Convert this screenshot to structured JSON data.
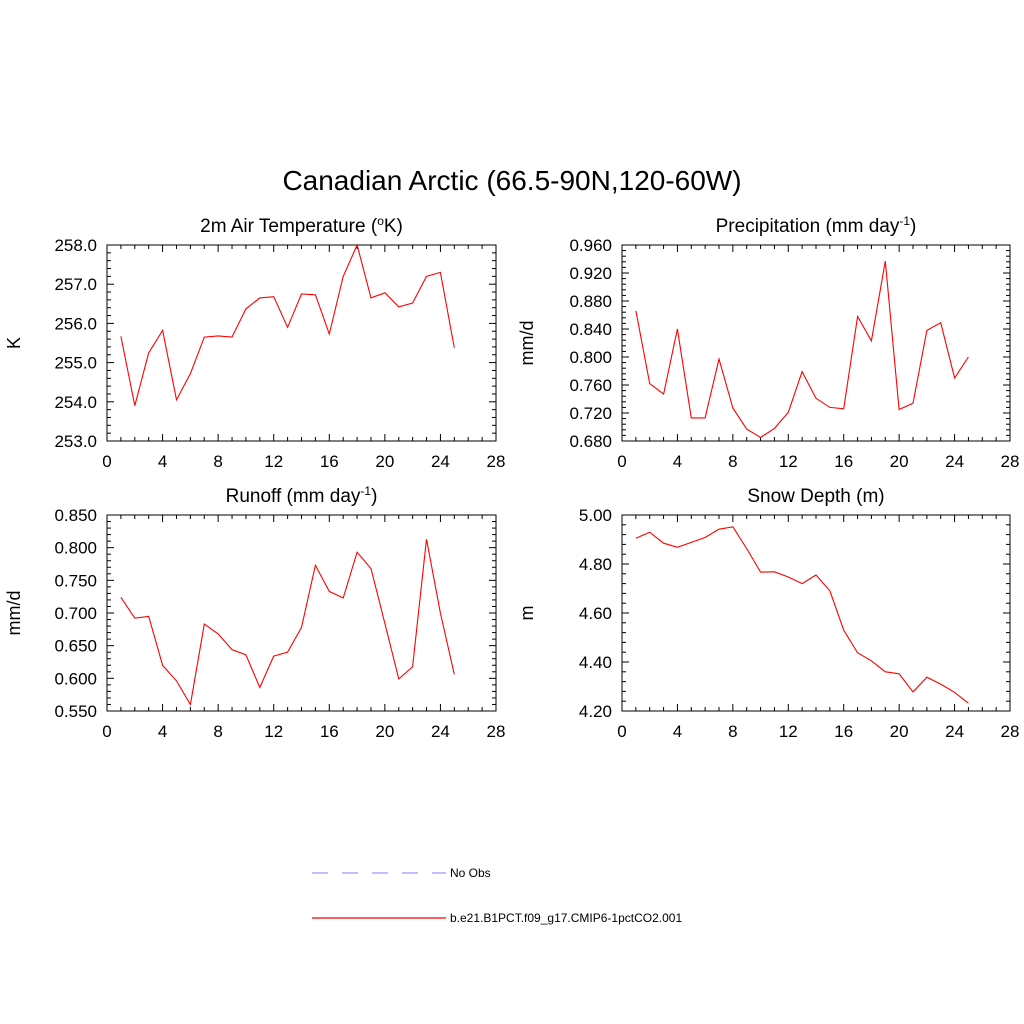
{
  "title": "Canadian Arctic (66.5-90N,120-60W)",
  "colors": {
    "model": "#ff0000",
    "obs": "#9999ff"
  },
  "legend": [
    {
      "label": "No Obs",
      "style": "dashed",
      "color": "#9999ff"
    },
    {
      "label": "b.e21.B1PCT.f09_g17.CMIP6-1pctCO2.001",
      "style": "solid",
      "color": "#ff0000"
    }
  ],
  "chart_data": [
    {
      "type": "line",
      "title": "2m Air Temperature (",
      "title_sup": "o",
      "title_after": "K)",
      "ylabel": "K",
      "xlim": [
        0,
        28
      ],
      "ylim": [
        253.0,
        258.0
      ],
      "xticks": [
        "0",
        "4",
        "8",
        "12",
        "16",
        "20",
        "24",
        "28"
      ],
      "yticks": [
        "253.0",
        "254.0",
        "255.0",
        "256.0",
        "257.0",
        "258.0"
      ],
      "x": [
        1,
        2,
        3,
        4,
        5,
        6,
        7,
        8,
        9,
        10,
        11,
        12,
        13,
        14,
        15,
        16,
        17,
        18,
        19,
        20,
        21,
        22,
        23,
        24,
        25
      ],
      "series": [
        {
          "values": [
            255.67,
            253.9,
            255.25,
            255.82,
            254.05,
            254.72,
            255.65,
            255.68,
            255.65,
            256.37,
            256.65,
            256.68,
            255.9,
            256.75,
            256.73,
            255.73,
            257.2,
            258.0,
            256.65,
            256.78,
            256.42,
            256.52,
            257.2,
            257.3,
            255.38
          ]
        }
      ]
    },
    {
      "type": "line",
      "title": "Precipitation (mm day",
      "title_sup": "-1",
      "title_after": ")",
      "ylabel": "mm/d",
      "xlim": [
        0,
        28
      ],
      "ylim": [
        0.68,
        0.96
      ],
      "xticks": [
        "0",
        "4",
        "8",
        "12",
        "16",
        "20",
        "24",
        "28"
      ],
      "yticks": [
        "0.680",
        "0.720",
        "0.760",
        "0.800",
        "0.840",
        "0.880",
        "0.920",
        "0.960"
      ],
      "x": [
        1,
        2,
        3,
        4,
        5,
        6,
        7,
        8,
        9,
        10,
        11,
        12,
        13,
        14,
        15,
        16,
        17,
        18,
        19,
        20,
        21,
        22,
        23,
        24,
        25
      ],
      "series": [
        {
          "values": [
            0.866,
            0.762,
            0.747,
            0.84,
            0.713,
            0.713,
            0.797,
            0.727,
            0.697,
            0.685,
            0.698,
            0.721,
            0.779,
            0.741,
            0.728,
            0.726,
            0.858,
            0.823,
            0.937,
            0.725,
            0.734,
            0.838,
            0.849,
            0.77,
            0.8
          ]
        }
      ]
    },
    {
      "type": "line",
      "title": "Runoff (mm day",
      "title_sup": "-1",
      "title_after": ")",
      "ylabel": "mm/d",
      "xlim": [
        0,
        28
      ],
      "ylim": [
        0.55,
        0.85
      ],
      "xticks": [
        "0",
        "4",
        "8",
        "12",
        "16",
        "20",
        "24",
        "28"
      ],
      "yticks": [
        "0.550",
        "0.600",
        "0.650",
        "0.700",
        "0.750",
        "0.800",
        "0.850"
      ],
      "x": [
        1,
        2,
        3,
        4,
        5,
        6,
        7,
        8,
        9,
        10,
        11,
        12,
        13,
        14,
        15,
        16,
        17,
        18,
        19,
        20,
        21,
        22,
        23,
        24,
        25
      ],
      "series": [
        {
          "values": [
            0.724,
            0.692,
            0.695,
            0.62,
            0.596,
            0.56,
            0.683,
            0.668,
            0.644,
            0.636,
            0.586,
            0.634,
            0.64,
            0.678,
            0.773,
            0.733,
            0.723,
            0.793,
            0.768,
            0.684,
            0.599,
            0.618,
            0.813,
            0.7,
            0.606
          ]
        }
      ]
    },
    {
      "type": "line",
      "title": "Snow Depth (m)",
      "title_sup": "",
      "title_after": "",
      "ylabel": "m",
      "xlim": [
        0,
        28
      ],
      "ylim": [
        4.2,
        5.0
      ],
      "xticks": [
        "0",
        "4",
        "8",
        "12",
        "16",
        "20",
        "24",
        "28"
      ],
      "yticks": [
        "4.20",
        "4.40",
        "4.60",
        "4.80",
        "5.00"
      ],
      "x": [
        1,
        2,
        3,
        4,
        5,
        6,
        7,
        8,
        9,
        10,
        11,
        12,
        13,
        14,
        15,
        16,
        17,
        18,
        19,
        20,
        21,
        22,
        23,
        24,
        25
      ],
      "series": [
        {
          "values": [
            4.905,
            4.93,
            4.885,
            4.868,
            4.888,
            4.908,
            4.942,
            4.952,
            4.863,
            4.767,
            4.768,
            4.747,
            4.72,
            4.755,
            4.69,
            4.53,
            4.437,
            4.405,
            4.36,
            4.352,
            4.278,
            4.338,
            4.31,
            4.276,
            4.232
          ]
        }
      ]
    }
  ]
}
